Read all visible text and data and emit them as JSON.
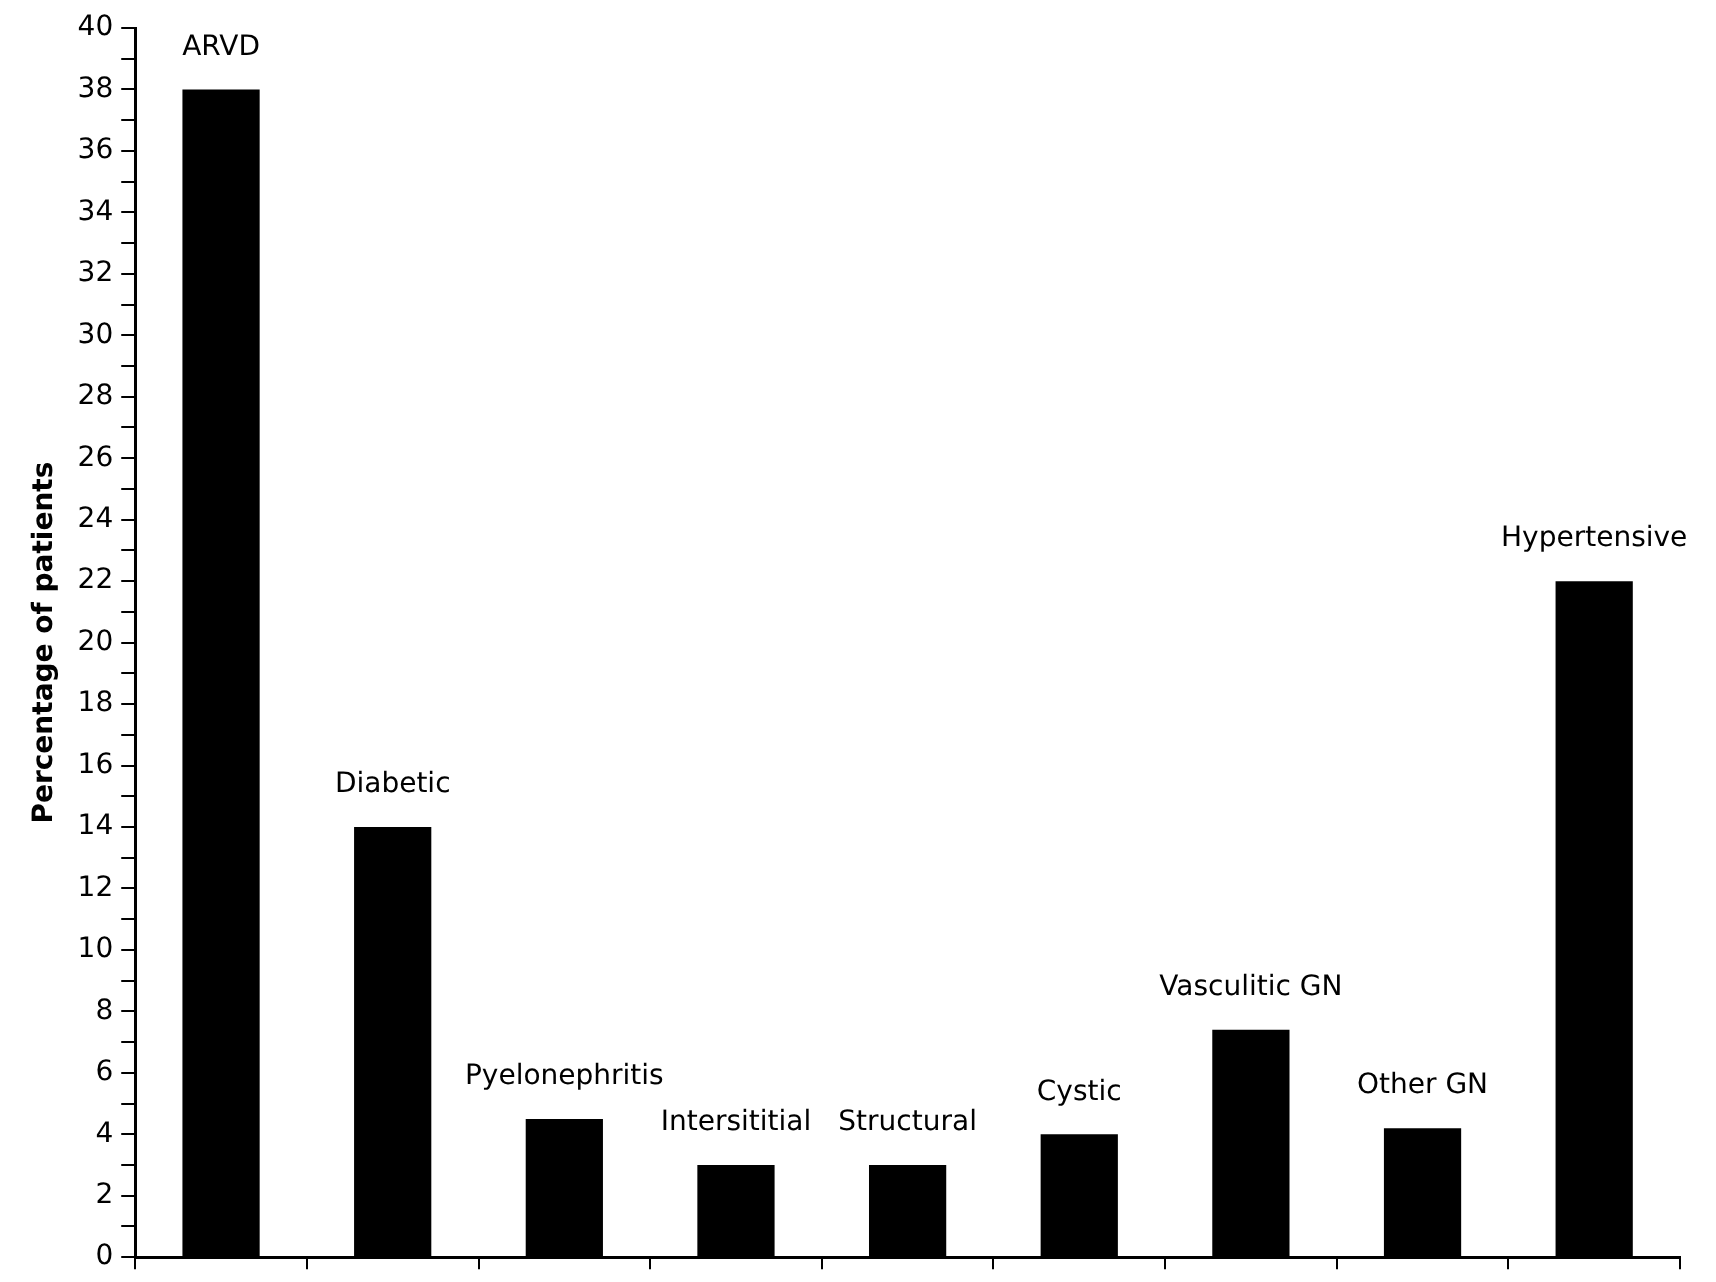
{
  "chart_data": {
    "type": "bar",
    "ylabel": "Percentage of patients",
    "categories": [
      "ARVD",
      "Diabetic",
      "Pyelonephritis",
      "Intersititial",
      "Structural",
      "Cystic",
      "Vasculitic GN",
      "Other GN",
      "Hypertensive"
    ],
    "values": [
      38,
      14,
      4.5,
      3,
      3,
      4,
      7.4,
      4.2,
      22
    ],
    "color": "#000000",
    "ylim": [
      0,
      40
    ],
    "yticks": [
      0,
      {
        "value": 1,
        "label": null
      },
      2,
      {
        "value": 3,
        "label": null
      },
      4,
      {
        "value": 5,
        "label": null
      },
      6,
      {
        "value": 7,
        "label": null
      },
      8,
      {
        "value": 9,
        "label": null
      },
      10,
      {
        "value": 11,
        "label": null
      },
      12,
      {
        "value": 13,
        "label": null
      },
      14,
      {
        "value": 15,
        "label": null
      },
      16,
      {
        "value": 17,
        "label": null
      },
      18,
      {
        "value": 19,
        "label": null
      },
      20,
      {
        "value": 21,
        "label": null
      },
      22,
      {
        "value": 23,
        "label": null
      },
      24,
      {
        "value": 25,
        "label": null
      },
      26,
      {
        "value": 27,
        "label": null
      },
      28,
      {
        "value": 29,
        "label": null
      },
      30,
      {
        "value": 31,
        "label": null
      },
      32,
      {
        "value": 33,
        "label": null
      },
      34,
      {
        "value": 35,
        "label": null
      },
      36,
      {
        "value": 37,
        "label": null
      },
      38,
      {
        "value": 39,
        "label": null
      },
      40
    ],
    "tick_labels": "y",
    "grid": false,
    "legend": false
  }
}
